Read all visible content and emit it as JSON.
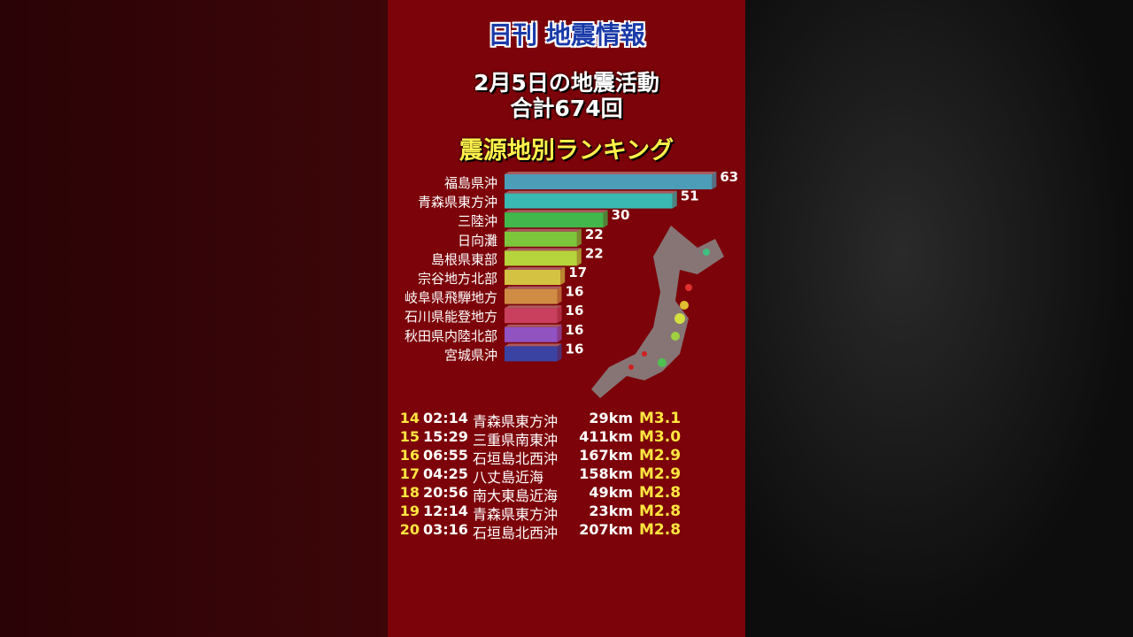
{
  "header": {
    "brand": "日刊 地震情報",
    "title": "2月5日の地震活動",
    "total": "合計674回",
    "ranking_title": "震源地別ランキング"
  },
  "chart_data": {
    "type": "bar",
    "orientation": "horizontal",
    "title": "震源地別ランキング",
    "categories": [
      "福島県沖",
      "青森県東方沖",
      "三陸沖",
      "日向灘",
      "島根県東部",
      "宗谷地方北部",
      "岐阜県飛騨地方",
      "石川県能登地方",
      "秋田県内陸北部",
      "宮城県沖"
    ],
    "values": [
      63,
      51,
      30,
      22,
      22,
      17,
      16,
      16,
      16,
      16
    ],
    "colors": [
      "#4c9db8",
      "#3ab8b2",
      "#42b84c",
      "#7cc63c",
      "#b6d43c",
      "#d4c242",
      "#d08c44",
      "#c8405e",
      "#9152c2",
      "#3b43a2"
    ]
  },
  "table": {
    "rows": [
      {
        "rank": "14",
        "time": "02:14",
        "place": "青森県東方沖",
        "depth": "29km",
        "mag": "M3.1"
      },
      {
        "rank": "15",
        "time": "15:29",
        "place": "三重県南東沖",
        "depth": "411km",
        "mag": "M3.0"
      },
      {
        "rank": "16",
        "time": "06:55",
        "place": "石垣島北西沖",
        "depth": "167km",
        "mag": "M2.9"
      },
      {
        "rank": "17",
        "time": "04:25",
        "place": "八丈島近海",
        "depth": "158km",
        "mag": "M2.9"
      },
      {
        "rank": "18",
        "time": "20:56",
        "place": "南大東島近海",
        "depth": "49km",
        "mag": "M2.8"
      },
      {
        "rank": "19",
        "time": "12:14",
        "place": "青森県東方沖",
        "depth": "23km",
        "mag": "M2.8"
      },
      {
        "rank": "20",
        "time": "03:16",
        "place": "石垣島北西沖",
        "depth": "207km",
        "mag": "M2.8"
      }
    ]
  }
}
